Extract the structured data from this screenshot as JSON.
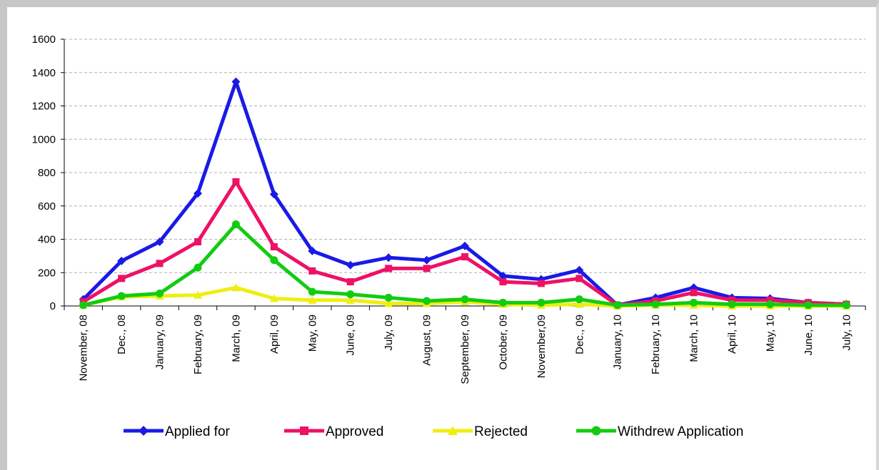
{
  "chart_data": {
    "type": "line",
    "title": "",
    "xlabel": "",
    "ylabel": "",
    "ylim": [
      0,
      1600
    ],
    "yticks": [
      0,
      200,
      400,
      600,
      800,
      1000,
      1200,
      1400,
      1600
    ],
    "grid": "horizontal-dashed",
    "legend_position": "bottom",
    "categories": [
      "November, 08",
      "Dec., 08",
      "January, 09",
      "February, 09",
      "March, 09",
      "April, 09",
      "May, 09",
      "June, 09",
      "July, 09",
      "August, 09",
      "September, 09",
      "October, 09",
      "November,09",
      "Dec., 09",
      "January, 10",
      "February, 10",
      "March, 10",
      "April, 10",
      "May, 10",
      "June, 10",
      "July, 10"
    ],
    "series": [
      {
        "name": "Applied for",
        "color": "#1a1ae6",
        "marker": "diamond",
        "values": [
          40,
          270,
          385,
          675,
          1345,
          670,
          330,
          245,
          290,
          275,
          360,
          180,
          160,
          215,
          5,
          50,
          110,
          50,
          45,
          20,
          10
        ]
      },
      {
        "name": "Approved",
        "color": "#ee1166",
        "marker": "square",
        "values": [
          25,
          165,
          255,
          385,
          745,
          355,
          210,
          145,
          225,
          225,
          295,
          145,
          135,
          165,
          5,
          30,
          80,
          35,
          35,
          20,
          10
        ]
      },
      {
        "name": "Rejected",
        "color": "#eeee11",
        "marker": "triangle",
        "values": [
          5,
          55,
          60,
          65,
          110,
          45,
          35,
          35,
          15,
          15,
          25,
          10,
          5,
          10,
          0,
          5,
          5,
          0,
          0,
          0,
          0
        ]
      },
      {
        "name": "Withdrew Application",
        "color": "#11cc11",
        "marker": "circle",
        "values": [
          5,
          60,
          75,
          230,
          490,
          275,
          85,
          70,
          50,
          30,
          40,
          20,
          20,
          40,
          5,
          10,
          20,
          10,
          10,
          5,
          5
        ]
      }
    ]
  }
}
